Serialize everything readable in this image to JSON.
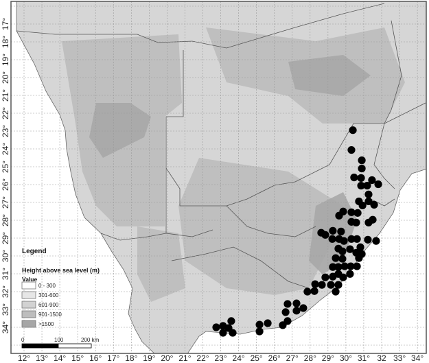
{
  "map": {
    "type": "occurrence-map",
    "x_axis_labels": [
      "12°",
      "13°",
      "14°",
      "15°",
      "16°",
      "17°",
      "18°",
      "19°",
      "20°",
      "21°",
      "22°",
      "23°",
      "24°",
      "25°",
      "26°",
      "27°",
      "28°",
      "29°",
      "30°",
      "31°",
      "32",
      "33°",
      "34°"
    ],
    "y_axis_labels": [
      "17°",
      "18°",
      "19°",
      "20°",
      "21°",
      "22°",
      "23°",
      "24°",
      "25°",
      "26°",
      "27°",
      "28°",
      "29°",
      "30°",
      "31°",
      "32°",
      "33°",
      "34°"
    ],
    "lon_range": [
      12,
      34
    ],
    "lat_range_south": [
      17,
      34
    ],
    "colors": {
      "ocean": "#ffffff",
      "land": "#d6d6d6",
      "point": "#000000",
      "border": "#555555"
    },
    "legend": {
      "title": "Legend",
      "subtitle": "Height above sea level (m)",
      "value_label": "Value",
      "classes": [
        {
          "label": "0 - 300",
          "color": "#ffffff"
        },
        {
          "label": "301-600",
          "color": "#e6e6e6"
        },
        {
          "label": "601-900",
          "color": "#d2d2d2"
        },
        {
          "label": "901-1500",
          "color": "#bdbdbd"
        },
        {
          "label": ">1500",
          "color": "#a6a6a6"
        }
      ]
    },
    "scale_bar": {
      "labels": [
        "0",
        "100",
        "200 km"
      ]
    },
    "points_lon_lat_south": [
      [
        30.39,
        22.95
      ],
      [
        30.31,
        24.06
      ],
      [
        30.89,
        24.64
      ],
      [
        30.89,
        25.1
      ],
      [
        30.46,
        25.6
      ],
      [
        30.85,
        25.63
      ],
      [
        31.46,
        25.75
      ],
      [
        31.81,
        25.98
      ],
      [
        30.85,
        26.06
      ],
      [
        31.19,
        26.06
      ],
      [
        31.27,
        26.55
      ],
      [
        30.73,
        26.94
      ],
      [
        31.27,
        26.94
      ],
      [
        30.93,
        27.17
      ],
      [
        31.58,
        27.13
      ],
      [
        29.85,
        27.51
      ],
      [
        29.62,
        27.74
      ],
      [
        30.31,
        27.55
      ],
      [
        30.66,
        27.59
      ],
      [
        30.31,
        28.09
      ],
      [
        30.58,
        28.13
      ],
      [
        31.27,
        28.13
      ],
      [
        31.5,
        27.97
      ],
      [
        28.62,
        28.7
      ],
      [
        28.85,
        28.82
      ],
      [
        29.27,
        28.59
      ],
      [
        29.73,
        28.63
      ],
      [
        29.24,
        29.05
      ],
      [
        29.62,
        29.05
      ],
      [
        29.89,
        29.16
      ],
      [
        30.31,
        29.05
      ],
      [
        30.62,
        29.05
      ],
      [
        31.23,
        29.09
      ],
      [
        31.69,
        29.16
      ],
      [
        29.58,
        29.59
      ],
      [
        29.81,
        29.74
      ],
      [
        30.23,
        29.62
      ],
      [
        30.58,
        29.82
      ],
      [
        30.81,
        29.51
      ],
      [
        30.89,
        29.89
      ],
      [
        30.73,
        30.12
      ],
      [
        29.43,
        30.12
      ],
      [
        29.81,
        30.16
      ],
      [
        29.27,
        30.62
      ],
      [
        29.58,
        30.62
      ],
      [
        29.93,
        30.58
      ],
      [
        30.27,
        30.58
      ],
      [
        30.62,
        30.58
      ],
      [
        28.85,
        31.2
      ],
      [
        29.27,
        31.16
      ],
      [
        29.58,
        31.01
      ],
      [
        29.85,
        31.2
      ],
      [
        30.23,
        31.01
      ],
      [
        28.28,
        31.58
      ],
      [
        28.66,
        31.62
      ],
      [
        29.16,
        31.62
      ],
      [
        29.58,
        31.62
      ],
      [
        27.85,
        32.0
      ],
      [
        28.24,
        31.97
      ],
      [
        29.43,
        32.0
      ],
      [
        26.74,
        32.69
      ],
      [
        27.24,
        32.66
      ],
      [
        27.62,
        32.92
      ],
      [
        27.24,
        33.07
      ],
      [
        26.63,
        33.15
      ],
      [
        26.74,
        33.65
      ],
      [
        26.47,
        33.88
      ],
      [
        25.17,
        33.85
      ],
      [
        25.63,
        33.77
      ],
      [
        25.17,
        34.23
      ],
      [
        23.59,
        33.65
      ],
      [
        23.13,
        33.92
      ],
      [
        22.75,
        34.0
      ],
      [
        23.44,
        34.04
      ],
      [
        23.13,
        34.31
      ],
      [
        23.67,
        34.31
      ]
    ]
  }
}
